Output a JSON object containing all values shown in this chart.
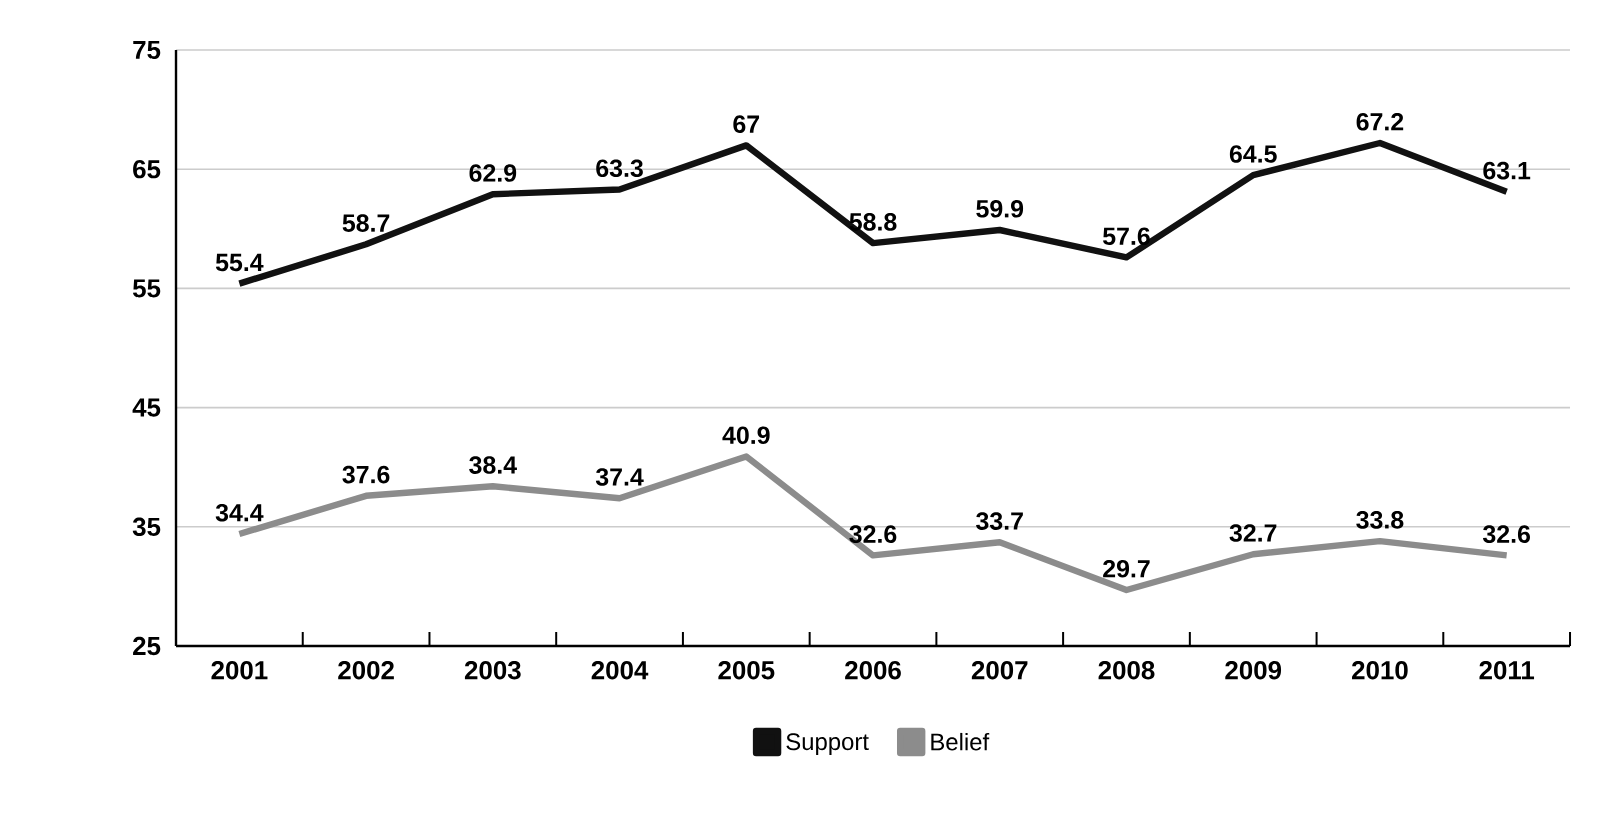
{
  "chart_data": {
    "type": "line",
    "categories": [
      "2001",
      "2002",
      "2003",
      "2004",
      "2005",
      "2006",
      "2007",
      "2008",
      "2009",
      "2010",
      "2011"
    ],
    "series": [
      {
        "name": "Support",
        "color": "#111111",
        "values": [
          55.4,
          58.7,
          62.9,
          63.3,
          67,
          58.8,
          59.9,
          57.6,
          64.5,
          67.2,
          63.1
        ]
      },
      {
        "name": "Belief",
        "color": "#8c8c8c",
        "values": [
          34.4,
          37.6,
          38.4,
          37.4,
          40.9,
          32.6,
          33.7,
          29.7,
          32.7,
          33.8,
          32.6
        ]
      }
    ],
    "ylim": [
      25,
      75
    ],
    "yticks": [
      25,
      35,
      45,
      55,
      65,
      75
    ],
    "grid": "y",
    "legend": "bottom",
    "data_labels": true,
    "marker": "none",
    "line_style": "solid"
  }
}
